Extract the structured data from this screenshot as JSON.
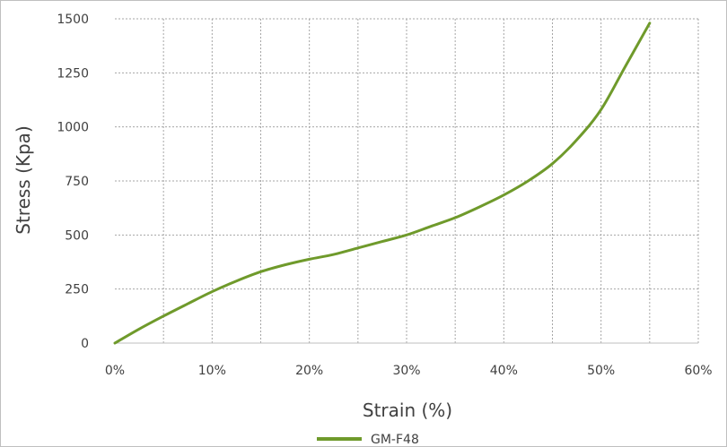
{
  "chart_data": {
    "type": "line",
    "title": "",
    "xlabel": "Strain (%)",
    "ylabel": "Stress (Kpa)",
    "xlim": [
      0,
      60
    ],
    "ylim": [
      0,
      1500
    ],
    "x_ticks": [
      0,
      10,
      20,
      30,
      40,
      50,
      60
    ],
    "x_tick_labels": [
      "0%",
      "10%",
      "20%",
      "30%",
      "40%",
      "50%",
      "60%"
    ],
    "y_ticks": [
      0,
      250,
      500,
      750,
      1000,
      1250,
      1500
    ],
    "y_tick_labels": [
      "0",
      "250",
      "500",
      "750",
      "1000",
      "1250",
      "1500"
    ],
    "grid": true,
    "legend_position": "bottom",
    "series": [
      {
        "name": "GM-F48",
        "color": "#6f9a2b",
        "x": [
          0,
          2.5,
          5,
          7.5,
          10,
          12.5,
          15,
          17.5,
          20,
          22.5,
          25,
          27.5,
          30,
          32.5,
          35,
          37.5,
          40,
          42.5,
          45,
          47.5,
          50,
          52.5,
          55
        ],
        "y": [
          0,
          65,
          125,
          182,
          238,
          287,
          330,
          362,
          388,
          410,
          440,
          470,
          500,
          540,
          580,
          630,
          685,
          750,
          830,
          940,
          1080,
          1280,
          1480
        ]
      }
    ]
  }
}
